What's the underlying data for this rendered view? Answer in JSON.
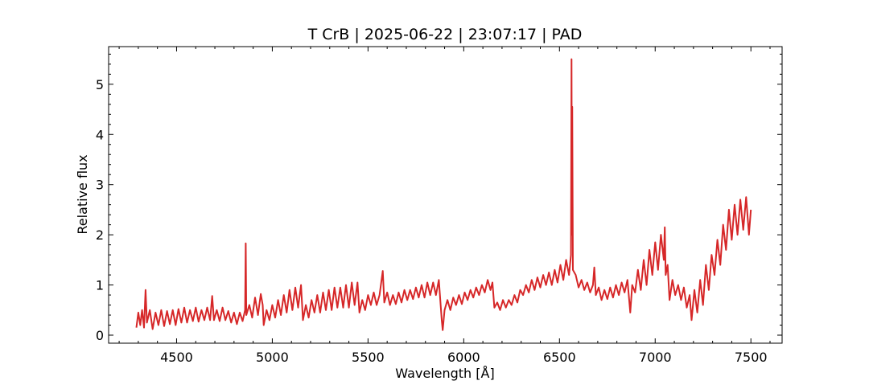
{
  "chart_data": {
    "type": "line",
    "title": "T CrB | 2025-06-22 | 23:07:17 | PAD",
    "xlabel": "Wavelength [Å]",
    "ylabel": "Relative flux",
    "xlim": [
      4145,
      7663
    ],
    "ylim": [
      -0.16,
      5.75
    ],
    "xticks": [
      4500,
      5000,
      5500,
      6000,
      6500,
      7000,
      7500
    ],
    "yticks": [
      0,
      1,
      2,
      3,
      4,
      5
    ],
    "xminorticks": [
      4200,
      4300,
      4400,
      4600,
      4700,
      4800,
      4900,
      5100,
      5200,
      5300,
      5400,
      5600,
      5700,
      5800,
      5900,
      6100,
      6200,
      6300,
      6400,
      6600,
      6700,
      6800,
      6900,
      7100,
      7200,
      7300,
      7400,
      7600
    ],
    "yminorticks": [
      0.2,
      0.4,
      0.6,
      0.8,
      1.2,
      1.4,
      1.6,
      1.8,
      2.2,
      2.4,
      2.6,
      2.8,
      3.2,
      3.4,
      3.6,
      3.8,
      4.2,
      4.4,
      4.6,
      4.8,
      5.2,
      5.4,
      5.6
    ],
    "series": [
      {
        "color": "#d62728",
        "x": [
          4290,
          4300,
          4310,
          4320,
          4330,
          4338,
          4345,
          4360,
          4375,
          4390,
          4405,
          4420,
          4435,
          4450,
          4465,
          4480,
          4495,
          4510,
          4525,
          4540,
          4555,
          4570,
          4585,
          4600,
          4615,
          4630,
          4645,
          4660,
          4675,
          4686,
          4695,
          4710,
          4725,
          4740,
          4755,
          4770,
          4785,
          4800,
          4815,
          4830,
          4845,
          4858,
          4861,
          4864,
          4880,
          4895,
          4910,
          4925,
          4940,
          4950,
          4955,
          4970,
          4985,
          5000,
          5015,
          5030,
          5045,
          5060,
          5075,
          5090,
          5105,
          5120,
          5135,
          5150,
          5160,
          5175,
          5190,
          5205,
          5220,
          5235,
          5250,
          5265,
          5280,
          5295,
          5310,
          5325,
          5340,
          5355,
          5370,
          5385,
          5400,
          5415,
          5430,
          5445,
          5455,
          5470,
          5485,
          5500,
          5515,
          5530,
          5545,
          5560,
          5577,
          5585,
          5600,
          5615,
          5630,
          5645,
          5660,
          5675,
          5690,
          5705,
          5720,
          5735,
          5750,
          5765,
          5780,
          5795,
          5810,
          5825,
          5840,
          5855,
          5870,
          5885,
          5890,
          5900,
          5915,
          5930,
          5945,
          5960,
          5975,
          5990,
          6005,
          6020,
          6035,
          6050,
          6065,
          6080,
          6095,
          6110,
          6125,
          6140,
          6150,
          6160,
          6175,
          6190,
          6205,
          6220,
          6235,
          6250,
          6265,
          6280,
          6295,
          6310,
          6325,
          6340,
          6355,
          6370,
          6385,
          6400,
          6415,
          6430,
          6445,
          6460,
          6475,
          6490,
          6505,
          6520,
          6535,
          6550,
          6560,
          6563,
          6565,
          6567,
          6570,
          6585,
          6600,
          6615,
          6630,
          6645,
          6660,
          6675,
          6682,
          6690,
          6705,
          6720,
          6735,
          6750,
          6765,
          6780,
          6795,
          6810,
          6825,
          6840,
          6855,
          6870,
          6880,
          6895,
          6910,
          6925,
          6940,
          6955,
          6970,
          6985,
          7000,
          7015,
          7030,
          7045,
          7050,
          7055,
          7065,
          7075,
          7090,
          7105,
          7120,
          7135,
          7150,
          7165,
          7180,
          7190,
          7205,
          7220,
          7235,
          7250,
          7265,
          7280,
          7295,
          7310,
          7325,
          7340,
          7355,
          7370,
          7385,
          7400,
          7415,
          7430,
          7445,
          7460,
          7475,
          7490,
          7500
        ],
        "values": [
          0.15,
          0.45,
          0.2,
          0.5,
          0.15,
          0.9,
          0.25,
          0.5,
          0.12,
          0.45,
          0.2,
          0.5,
          0.18,
          0.48,
          0.22,
          0.5,
          0.2,
          0.52,
          0.25,
          0.55,
          0.25,
          0.5,
          0.28,
          0.55,
          0.27,
          0.5,
          0.3,
          0.55,
          0.3,
          0.78,
          0.3,
          0.5,
          0.28,
          0.55,
          0.3,
          0.48,
          0.25,
          0.45,
          0.22,
          0.45,
          0.28,
          0.5,
          1.83,
          0.4,
          0.6,
          0.35,
          0.75,
          0.4,
          0.82,
          0.6,
          0.2,
          0.5,
          0.3,
          0.6,
          0.35,
          0.7,
          0.4,
          0.8,
          0.45,
          0.9,
          0.5,
          0.95,
          0.55,
          1.0,
          0.3,
          0.6,
          0.35,
          0.7,
          0.45,
          0.8,
          0.45,
          0.85,
          0.5,
          0.9,
          0.5,
          0.95,
          0.55,
          0.95,
          0.55,
          1.0,
          0.55,
          1.05,
          0.6,
          1.05,
          0.45,
          0.7,
          0.5,
          0.8,
          0.6,
          0.85,
          0.6,
          0.8,
          1.28,
          0.65,
          0.85,
          0.6,
          0.8,
          0.62,
          0.85,
          0.65,
          0.9,
          0.7,
          0.9,
          0.72,
          0.95,
          0.75,
          1.0,
          0.75,
          1.05,
          0.8,
          1.05,
          0.8,
          1.1,
          0.3,
          0.1,
          0.5,
          0.7,
          0.5,
          0.75,
          0.6,
          0.8,
          0.62,
          0.85,
          0.7,
          0.9,
          0.75,
          0.95,
          0.8,
          1.0,
          0.85,
          1.1,
          0.9,
          1.05,
          0.55,
          0.65,
          0.5,
          0.7,
          0.55,
          0.7,
          0.6,
          0.8,
          0.65,
          0.9,
          0.8,
          1.0,
          0.85,
          1.1,
          0.9,
          1.15,
          0.95,
          1.2,
          1.0,
          1.25,
          1.0,
          1.3,
          1.05,
          1.4,
          1.1,
          1.5,
          1.2,
          1.6,
          5.5,
          2.0,
          4.55,
          1.3,
          1.2,
          0.95,
          1.1,
          0.9,
          1.05,
          0.85,
          1.0,
          1.35,
          0.8,
          0.95,
          0.7,
          0.9,
          0.72,
          0.95,
          0.75,
          1.0,
          0.8,
          1.05,
          0.85,
          1.1,
          0.45,
          1.0,
          0.85,
          1.3,
          0.9,
          1.5,
          1.0,
          1.7,
          1.2,
          1.85,
          1.3,
          2.0,
          1.5,
          2.15,
          1.2,
          1.4,
          0.7,
          1.1,
          0.8,
          1.0,
          0.7,
          0.95,
          0.55,
          0.8,
          0.3,
          0.9,
          0.45,
          1.1,
          0.6,
          1.4,
          0.9,
          1.6,
          1.2,
          1.9,
          1.4,
          2.2,
          1.7,
          2.5,
          1.9,
          2.6,
          2.0,
          2.7,
          2.1,
          2.75,
          2.0,
          2.5
        ]
      }
    ]
  }
}
